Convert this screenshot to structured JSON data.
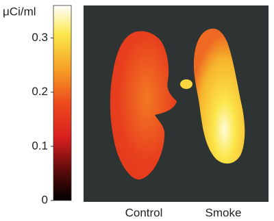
{
  "colorbar": {
    "label": "μCi/ml",
    "lim": [
      0,
      0.36
    ],
    "ticks": [
      0,
      0.1,
      0.2,
      0.3
    ]
  },
  "panels": {
    "labels": [
      "Control",
      "Smoke"
    ]
  }
}
